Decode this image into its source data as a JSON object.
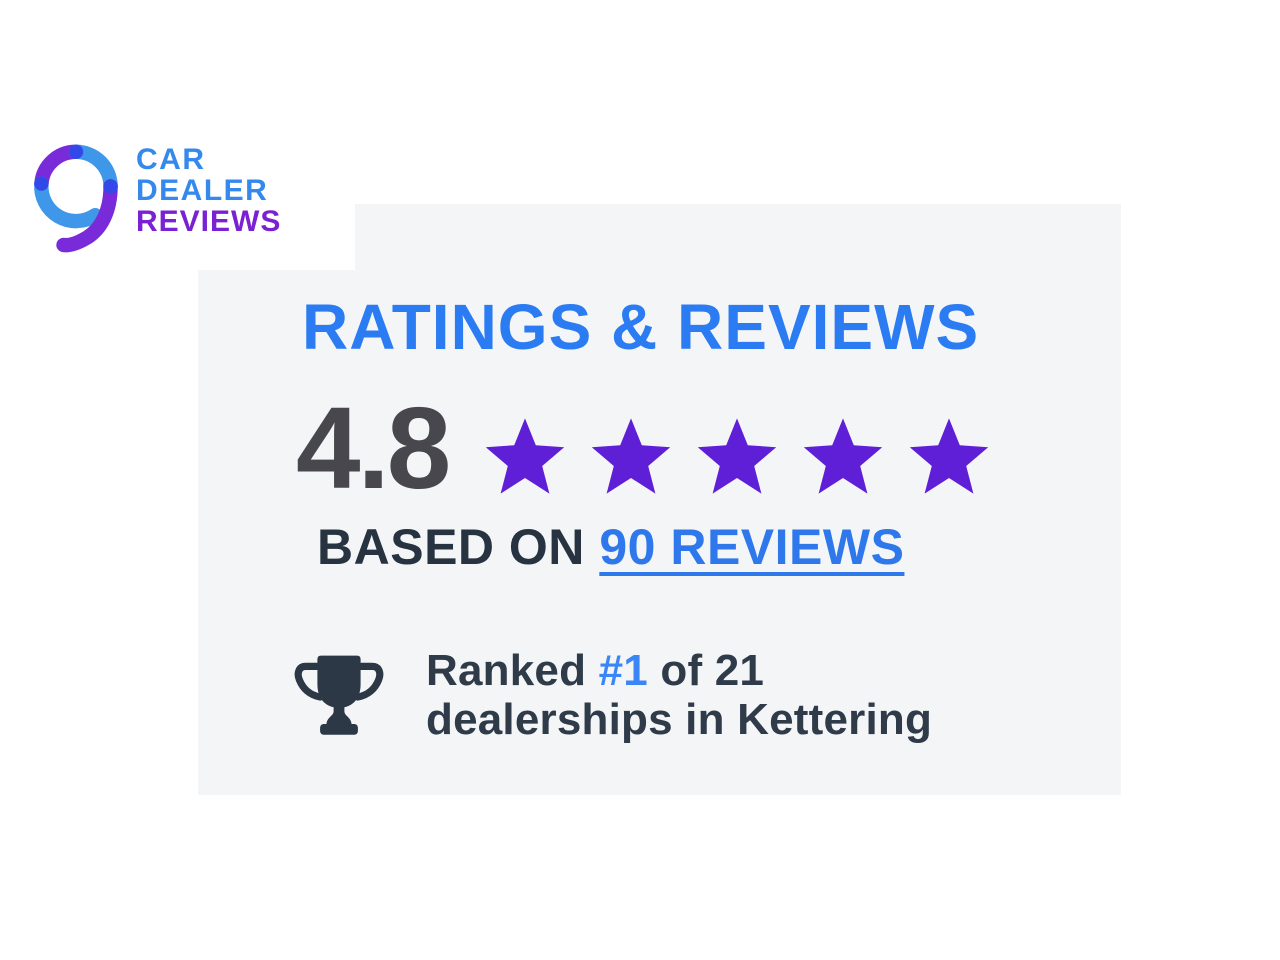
{
  "logo": {
    "line1": "CAR",
    "line2": "DEALER",
    "line3": "REVIEWS"
  },
  "ratings_card": {
    "title": "RATINGS & REVIEWS",
    "rating_value": "4.8",
    "star_count": 5,
    "based_on_label": "BASED ON",
    "reviews_link_label": "90 REVIEWS",
    "ranked_prefix": "Ranked",
    "ranked_rank": "#1",
    "ranked_suffix": "of 21",
    "ranked_line2": "dealerships in Kettering"
  },
  "icons": {
    "logo_mark": "ring-swirl-icon",
    "star": "star-icon",
    "trophy": "trophy-icon"
  },
  "colors": {
    "heading_blue": "#2B7CF2",
    "link_blue": "#2E78EC",
    "rank_blue": "#3B86F7",
    "star_purple": "#5E1FD6",
    "rating_dark": "#47474D",
    "text_dark": "#273341",
    "ranked_dark": "#2F3B49",
    "trophy_dark": "#2C3845",
    "card_bg": "#F4F5F7",
    "page_bg": "#FFFFFF",
    "logo_blue": "#3589EC",
    "logo_purple": "#7A22D3",
    "ring_blue": "#3E97E8",
    "ring_purple": "#7A2BD9",
    "ring_dot_blue": "#3348E8"
  }
}
